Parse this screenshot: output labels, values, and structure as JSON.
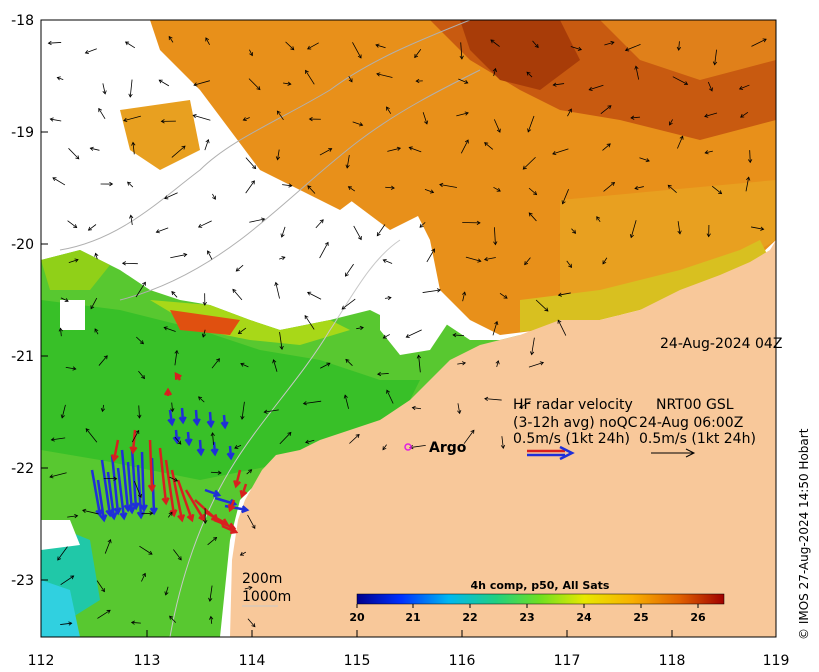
{
  "axes": {
    "x_ticks": [
      "112",
      "113",
      "114",
      "115",
      "116",
      "117",
      "118",
      "119"
    ],
    "y_ticks": [
      "-18",
      "-19",
      "-20",
      "-21",
      "-22",
      "-23"
    ]
  },
  "timestamp": "24-Aug-2024 04Z",
  "argo_label": "Argo",
  "legend": {
    "line1": "HF radar velocity",
    "line1b": "NRT00 GSL",
    "line2": "(3-12h avg) noQC",
    "line2b": "24-Aug 06:00Z",
    "line3": "0.5m/s (1kt 24h)",
    "line3b": "0.5m/s (1kt 24h)"
  },
  "isobaths": {
    "a": "200m",
    "b": "1000m"
  },
  "colorbar": {
    "title": "4h comp, p50, All Sats",
    "ticks": [
      "20",
      "21",
      "22",
      "23",
      "24",
      "25",
      "26"
    ]
  },
  "credit": "© IMOS 27-Aug-2024 14:50 Hobart",
  "colors": {
    "land": "#f8c89a",
    "argo": "#e020e0",
    "radar_blue": "#1f2fd8",
    "radar_red": "#d81f1f"
  }
}
